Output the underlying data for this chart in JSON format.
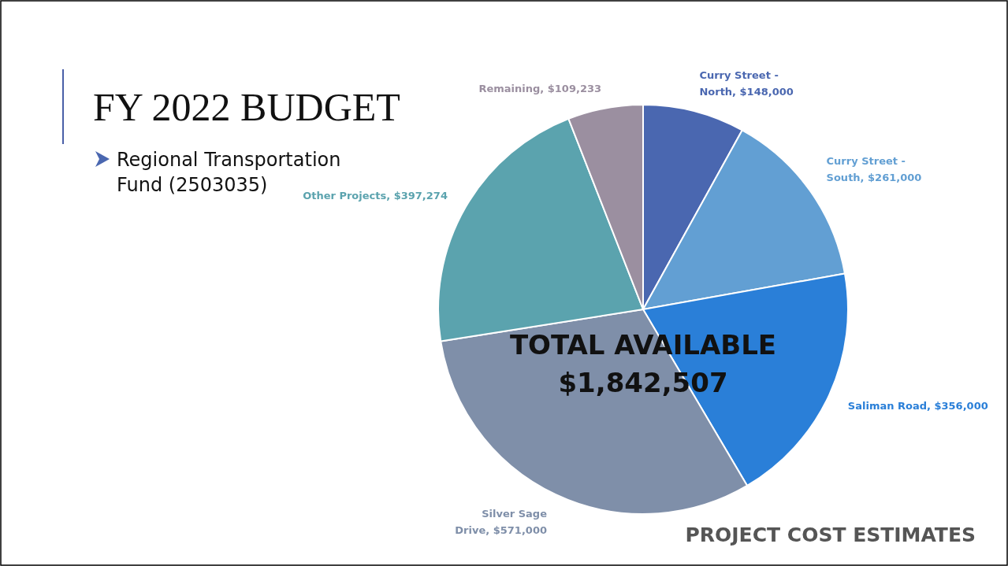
{
  "chart_data": {
    "type": "pie",
    "title": "FY 2022 BUDGET",
    "subtitle": "Regional Transportation Fund (2503035)",
    "categories": [
      "Curry Street - North",
      "Curry Street - South",
      "Saliman Road",
      "Silver Sage Drive",
      "Other Projects",
      "Remaining"
    ],
    "values": [
      148000,
      261000,
      356000,
      571000,
      397274,
      109233
    ],
    "value_labels": [
      "$148,000",
      "$261,000",
      "$356,000",
      "$571,000",
      "$397,274",
      "$109,233"
    ],
    "colors": [
      "#4a67b0",
      "#629fd3",
      "#2a7fd8",
      "#7f8fa9",
      "#5ba3ae",
      "#9b8fa0"
    ],
    "annotations": [
      "TOTAL AVAILABLE $1,842,507",
      "PROJECT COST ESTIMATES"
    ]
  }
}
